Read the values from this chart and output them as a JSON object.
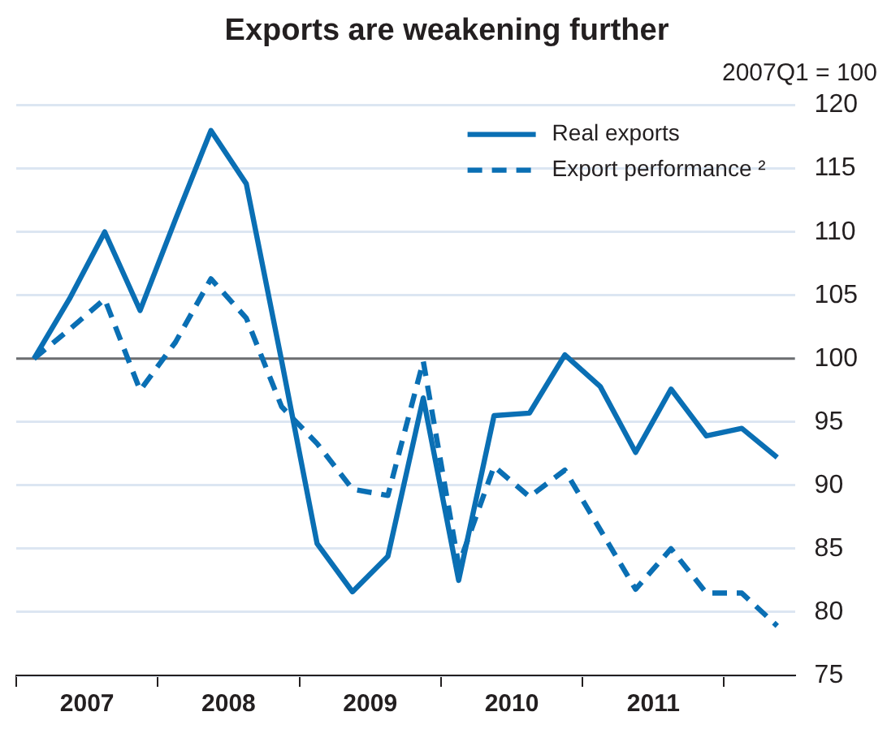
{
  "chart_data": {
    "type": "line",
    "title": "Exports are weakening further",
    "ylabel": "2007Q1 = 100",
    "x": [
      2007.125,
      2007.375,
      2007.625,
      2007.875,
      2008.125,
      2008.375,
      2008.625,
      2008.875,
      2009.125,
      2009.375,
      2009.625,
      2009.875,
      2010.125,
      2010.375,
      2010.625,
      2010.875,
      2011.125,
      2011.375,
      2011.625,
      2011.875,
      2012.125,
      2012.375
    ],
    "series": [
      {
        "name": "Real exports",
        "color": "#0a6fb4",
        "line_style": "solid",
        "values": [
          100,
          104.7,
          110.0,
          103.8,
          111.0,
          118.0,
          113.8,
          99.8,
          85.4,
          81.6,
          84.4,
          96.9,
          82.5,
          95.5,
          95.7,
          100.3,
          97.8,
          92.6,
          97.6,
          93.9,
          94.5,
          92.2
        ]
      },
      {
        "name": "Export performance ²",
        "color": "#0a6fb4",
        "line_style": "dashed",
        "values": [
          100,
          102.3,
          104.7,
          97.5,
          101.3,
          106.3,
          103.2,
          96.2,
          93.3,
          89.7,
          89.2,
          99.8,
          83.7,
          91.5,
          89.1,
          91.2,
          86.5,
          81.8,
          85.0,
          81.5,
          81.5,
          78.9
        ]
      }
    ],
    "xlim": [
      2007,
      2012.5
    ],
    "xticks": [
      {
        "value": 2007,
        "label": null
      },
      {
        "value": 2007.5,
        "label": "2007"
      },
      {
        "value": 2008,
        "label": null
      },
      {
        "value": 2008.5,
        "label": "2008"
      },
      {
        "value": 2009,
        "label": null
      },
      {
        "value": 2009.5,
        "label": "2009"
      },
      {
        "value": 2010,
        "label": null
      },
      {
        "value": 2010.5,
        "label": "2010"
      },
      {
        "value": 2011,
        "label": null
      },
      {
        "value": 2011.5,
        "label": "2011"
      },
      {
        "value": 2012,
        "label": null
      }
    ],
    "ylim": [
      75,
      120
    ],
    "yticks": [
      75,
      80,
      85,
      90,
      95,
      100,
      105,
      110,
      115,
      120
    ],
    "ref_lines": [
      {
        "axis": "y",
        "value": 100,
        "color": "#6d6e70"
      }
    ],
    "grid": "y",
    "legend": "top right",
    "marker": "none"
  }
}
